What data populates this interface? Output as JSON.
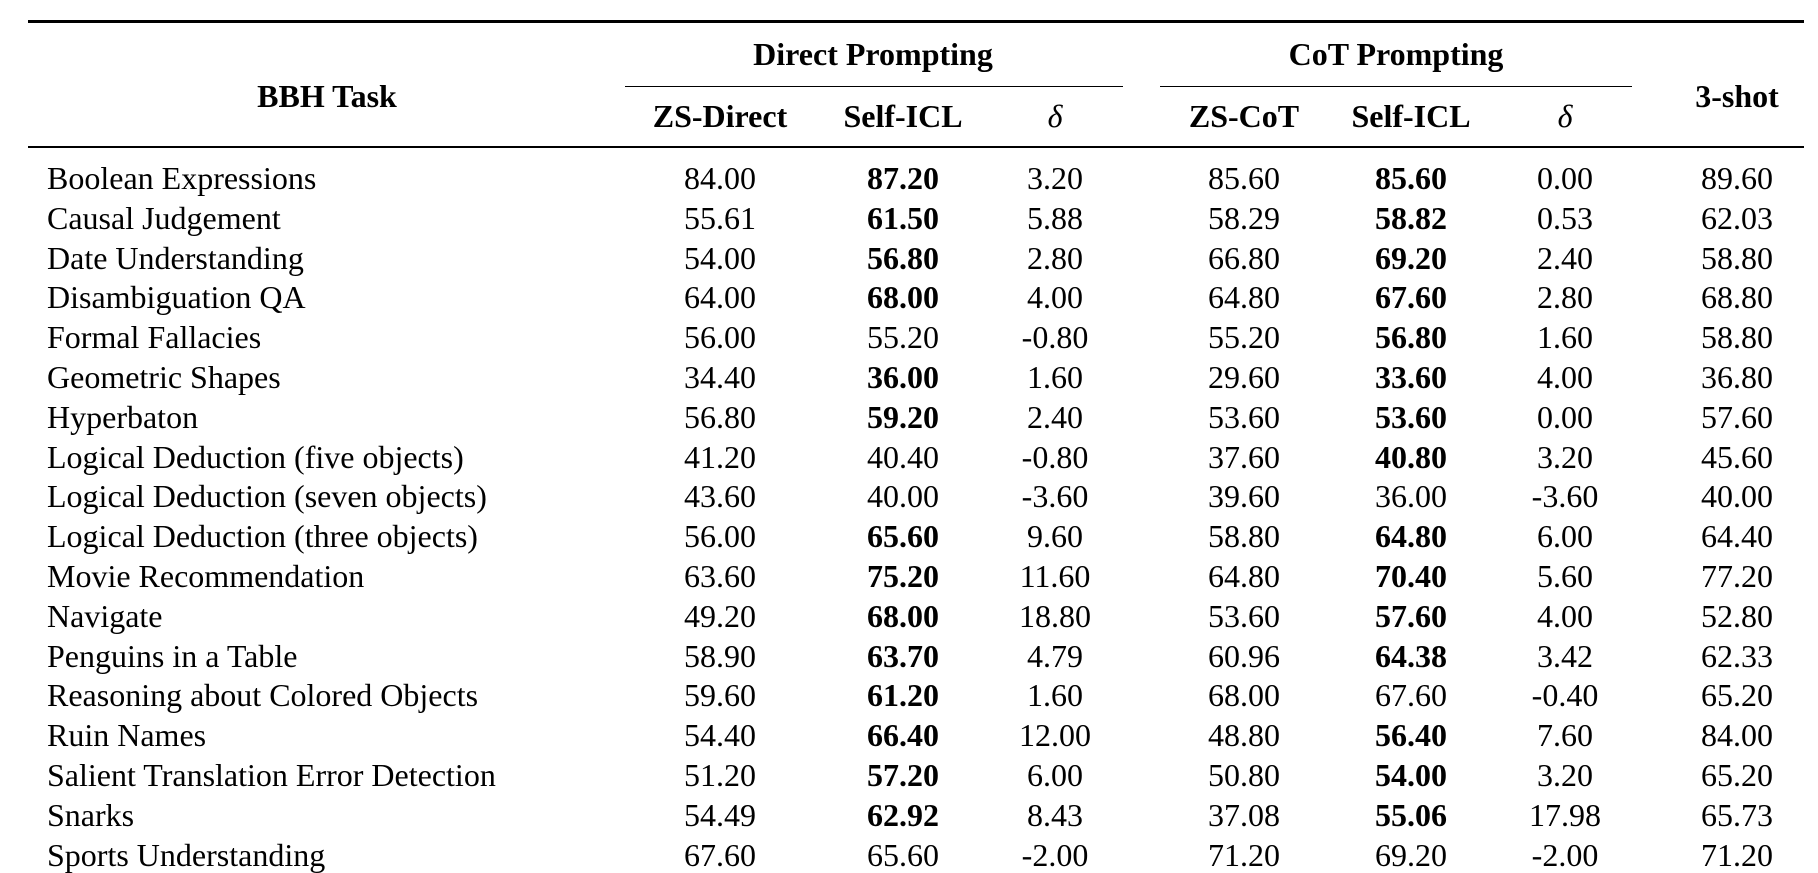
{
  "header": {
    "task_label": "BBH Task",
    "group_direct": "Direct Prompting",
    "group_cot": "CoT Prompting",
    "shot3": "3-shot",
    "zs_direct": "ZS-Direct",
    "self_icl_direct": "Self-ICL",
    "delta_direct": "δ",
    "zs_cot": "ZS-CoT",
    "self_icl_cot": "Self-ICL",
    "delta_cot": "δ"
  },
  "rows": [
    {
      "task": "Boolean Expressions",
      "cells": [
        "84.00",
        "87.20",
        "3.20",
        "85.60",
        "85.60",
        "0.00",
        "89.60"
      ],
      "bold": [
        1,
        4
      ]
    },
    {
      "task": "Causal Judgement",
      "cells": [
        "55.61",
        "61.50",
        "5.88",
        "58.29",
        "58.82",
        "0.53",
        "62.03"
      ],
      "bold": [
        1,
        4
      ]
    },
    {
      "task": "Date Understanding",
      "cells": [
        "54.00",
        "56.80",
        "2.80",
        "66.80",
        "69.20",
        "2.40",
        "58.80"
      ],
      "bold": [
        1,
        4
      ]
    },
    {
      "task": "Disambiguation QA",
      "cells": [
        "64.00",
        "68.00",
        "4.00",
        "64.80",
        "67.60",
        "2.80",
        "68.80"
      ],
      "bold": [
        1,
        4
      ]
    },
    {
      "task": "Formal Fallacies",
      "cells": [
        "56.00",
        "55.20",
        "-0.80",
        "55.20",
        "56.80",
        "1.60",
        "58.80"
      ],
      "bold": [
        4
      ]
    },
    {
      "task": "Geometric Shapes",
      "cells": [
        "34.40",
        "36.00",
        "1.60",
        "29.60",
        "33.60",
        "4.00",
        "36.80"
      ],
      "bold": [
        1,
        4
      ]
    },
    {
      "task": "Hyperbaton",
      "cells": [
        "56.80",
        "59.20",
        "2.40",
        "53.60",
        "53.60",
        "0.00",
        "57.60"
      ],
      "bold": [
        1,
        4
      ]
    },
    {
      "task": "Logical Deduction (five objects)",
      "cells": [
        "41.20",
        "40.40",
        "-0.80",
        "37.60",
        "40.80",
        "3.20",
        "45.60"
      ],
      "bold": [
        4
      ]
    },
    {
      "task": "Logical Deduction (seven objects)",
      "cells": [
        "43.60",
        "40.00",
        "-3.60",
        "39.60",
        "36.00",
        "-3.60",
        "40.00"
      ],
      "bold": []
    },
    {
      "task": "Logical Deduction (three objects)",
      "cells": [
        "56.00",
        "65.60",
        "9.60",
        "58.80",
        "64.80",
        "6.00",
        "64.40"
      ],
      "bold": [
        1,
        4
      ]
    },
    {
      "task": "Movie Recommendation",
      "cells": [
        "63.60",
        "75.20",
        "11.60",
        "64.80",
        "70.40",
        "5.60",
        "77.20"
      ],
      "bold": [
        1,
        4
      ]
    },
    {
      "task": "Navigate",
      "cells": [
        "49.20",
        "68.00",
        "18.80",
        "53.60",
        "57.60",
        "4.00",
        "52.80"
      ],
      "bold": [
        1,
        4
      ]
    },
    {
      "task": "Penguins in a Table",
      "cells": [
        "58.90",
        "63.70",
        "4.79",
        "60.96",
        "64.38",
        "3.42",
        "62.33"
      ],
      "bold": [
        1,
        4
      ]
    },
    {
      "task": "Reasoning about Colored Objects",
      "cells": [
        "59.60",
        "61.20",
        "1.60",
        "68.00",
        "67.60",
        "-0.40",
        "65.20"
      ],
      "bold": [
        1
      ]
    },
    {
      "task": "Ruin Names",
      "cells": [
        "54.40",
        "66.40",
        "12.00",
        "48.80",
        "56.40",
        "7.60",
        "84.00"
      ],
      "bold": [
        1,
        4
      ]
    },
    {
      "task": "Salient Translation Error Detection",
      "cells": [
        "51.20",
        "57.20",
        "6.00",
        "50.80",
        "54.00",
        "3.20",
        "65.20"
      ],
      "bold": [
        1,
        4
      ]
    },
    {
      "task": "Snarks",
      "cells": [
        "54.49",
        "62.92",
        "8.43",
        "37.08",
        "55.06",
        "17.98",
        "65.73"
      ],
      "bold": [
        1,
        4
      ]
    },
    {
      "task": "Sports Understanding",
      "cells": [
        "67.60",
        "65.60",
        "-2.00",
        "71.20",
        "69.20",
        "-2.00",
        "71.20"
      ],
      "bold": []
    }
  ]
}
